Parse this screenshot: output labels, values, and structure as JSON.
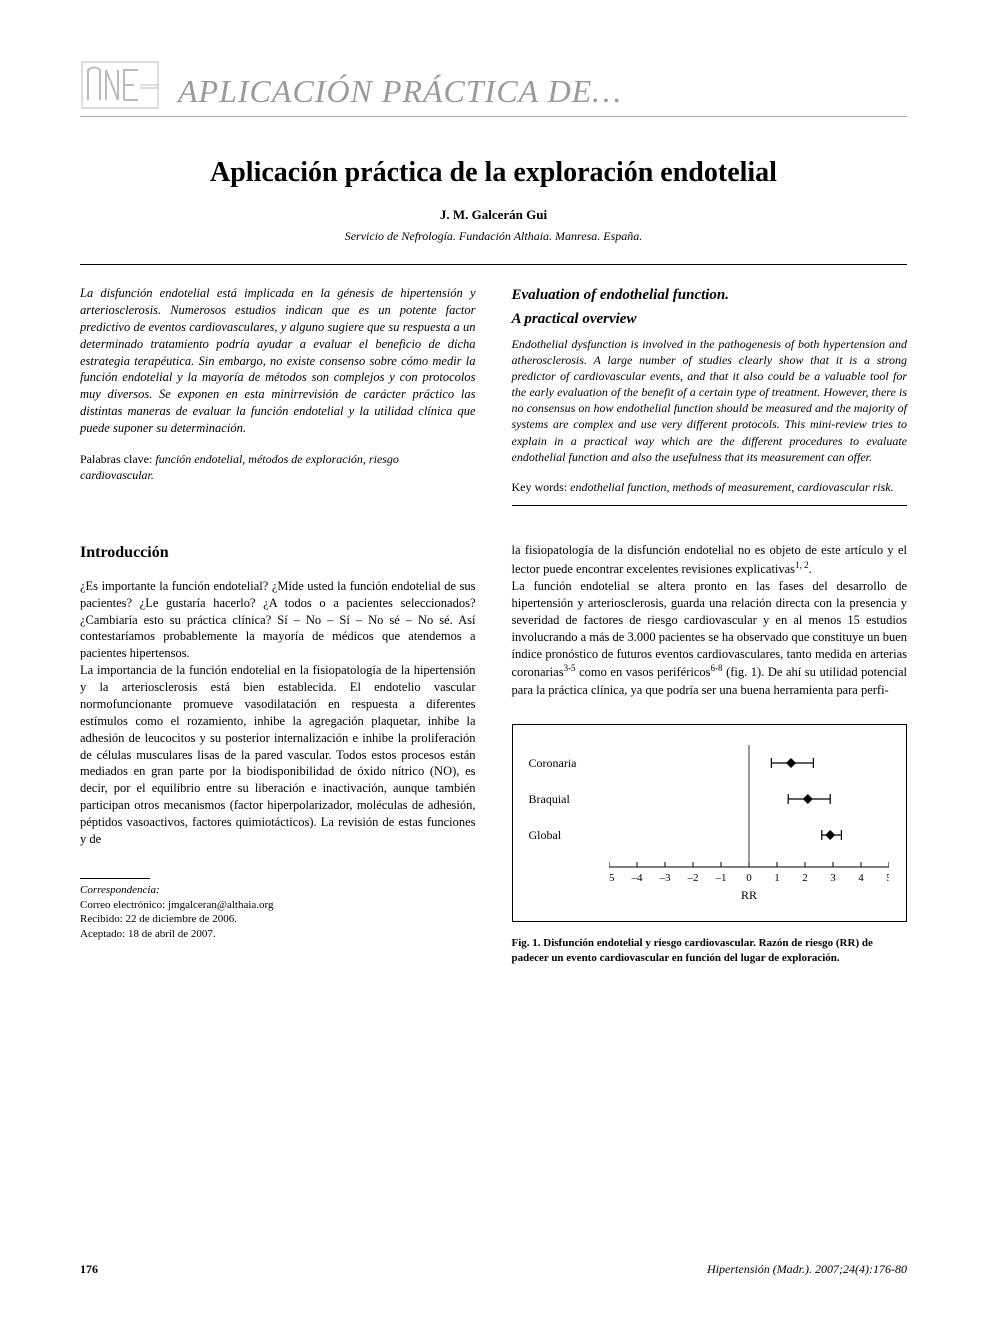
{
  "banner": {
    "section_title": "APLICACIÓN PRÁCTICA DE…",
    "title_color": "#9a9a9a",
    "title_fontsize": 32
  },
  "article": {
    "title": "Aplicación práctica de la exploración endotelial",
    "author": "J. M. Galcerán Gui",
    "affiliation": "Servicio de Nefrología. Fundación Althaia. Manresa. España."
  },
  "abstract_es": {
    "text": "La disfunción endotelial está implicada en la génesis de hipertensión y arteriosclerosis. Numerosos estudios indican que es un potente factor predictivo de eventos cardiovasculares, y alguno sugiere que su respuesta a un determinado tratamiento podría ayudar a evaluar el beneficio de dicha estrategia terapéutica. Sin embargo, no existe consenso sobre cómo medir la función endotelial y la mayoría de métodos son complejos y con protocolos muy diversos. Se exponen en esta minirrevisión de carácter práctico las distintas maneras de evaluar la función endotelial y la utilidad clínica que puede suponer su determinación.",
    "keywords_label": "Palabras clave:",
    "keywords": "función endotelial, métodos de exploración, riesgo cardiovascular."
  },
  "abstract_en": {
    "title_line1": "Evaluation of endothelial function.",
    "title_line2": "A practical overview",
    "text": "Endothelial dysfunction is involved in the pathogenesis of both hypertension and atherosclerosis. A large number of studies clearly show that it is a strong predictor of cardiovascular events, and that it also could be a valuable tool for the early evaluation of the benefit of a certain type of treatment. However, there is no consensus on how endothelial function should be measured and the majority of systems are complex and use very different protocols. This mini-review tries to explain in a practical way which are the different procedures to evaluate endothelial function and also the usefulness that its measurement can offer.",
    "keywords_label": "Key words:",
    "keywords": "endothelial function, methods of measurement, cardiovascular risk."
  },
  "intro": {
    "heading": "Introducción",
    "para_left": "¿Es importante la función endotelial? ¿Mide usted la función endotelial de sus pacientes? ¿Le gustaría hacerlo? ¿A todos o a pacientes seleccionados? ¿Cambiaría esto su práctica clínica? Sí – No – Sí – No sé – No sé. Así contestaríamos probablemente la mayoría de médicos que atendemos a pacientes hipertensos.\nLa importancia de la función endotelial en la fisiopatología de la hipertensión y la arteriosclerosis está bien establecida. El endotelio vascular normofuncionante promueve vasodilatación en respuesta a diferentes estímulos como el rozamiento, inhibe la agregación plaquetar, inhibe la adhesión de leucocitos y su posterior internalización e inhibe la proliferación de células musculares lisas de la pared vascular. Todos estos procesos están mediados en gran parte por la biodisponibilidad de óxido nítrico (NO), es decir, por el equilibrio entre su liberación e inactivación, aunque también participan otros mecanismos (factor hiperpolarizador, moléculas de adhesión, péptidos vasoactivos, factores quimiotácticos). La revisión de estas funciones y de",
    "para_right": "la fisiopatología de la disfunción endotelial no es objeto de este artículo y el lector puede encontrar excelentes revisiones explicativas1, 2.\nLa función endotelial se altera pronto en las fases del desarrollo de hipertensión y arteriosclerosis, guarda una relación directa con la presencia y severidad de factores de riesgo cardiovascular y en al menos 15 estudios involucrando a más de 3.000 pacientes se ha observado que constituye un buen índice pronóstico de futuros eventos cardiovasculares, tanto medida en arterias coronarias3-5 como en vasos periféricos6-8 (fig. 1). De ahí su utilidad potencial para la práctica clínica, ya que podría ser una buena herramienta para perfi-"
  },
  "correspondence": {
    "label": "Correspondencia:",
    "email_label": "Correo electrónico:",
    "email": "jmgalceran@althaia.org",
    "received": "Recibido: 22 de diciembre de 2006.",
    "accepted": "Aceptado: 18 de abril de 2007."
  },
  "figure1": {
    "type": "forest-plot",
    "xlim": [
      -5,
      5
    ],
    "xticks": [
      -5,
      -4,
      -3,
      -2,
      -1,
      0,
      1,
      2,
      3,
      4,
      5
    ],
    "xlabel": "RR",
    "center_line_x": 0,
    "rows": [
      {
        "label": "Coronaria",
        "point": 1.5,
        "ci_low": 0.8,
        "ci_high": 2.3
      },
      {
        "label": "Braquial",
        "point": 2.1,
        "ci_low": 1.4,
        "ci_high": 2.9
      },
      {
        "label": "Global",
        "point": 2.9,
        "ci_low": 2.6,
        "ci_high": 3.3
      }
    ],
    "marker_color": "#000000",
    "line_color": "#000000",
    "axis_color": "#000000",
    "label_fontsize": 12,
    "tick_fontsize": 11,
    "caption": "Fig. 1. Disfunción endotelial y riesgo cardiovascular. Razón de riesgo (RR) de padecer un evento cardiovascular en función del lugar de exploración."
  },
  "footer": {
    "page": "176",
    "citation": "Hipertensión (Madr.). 2007;24(4):176-80"
  }
}
